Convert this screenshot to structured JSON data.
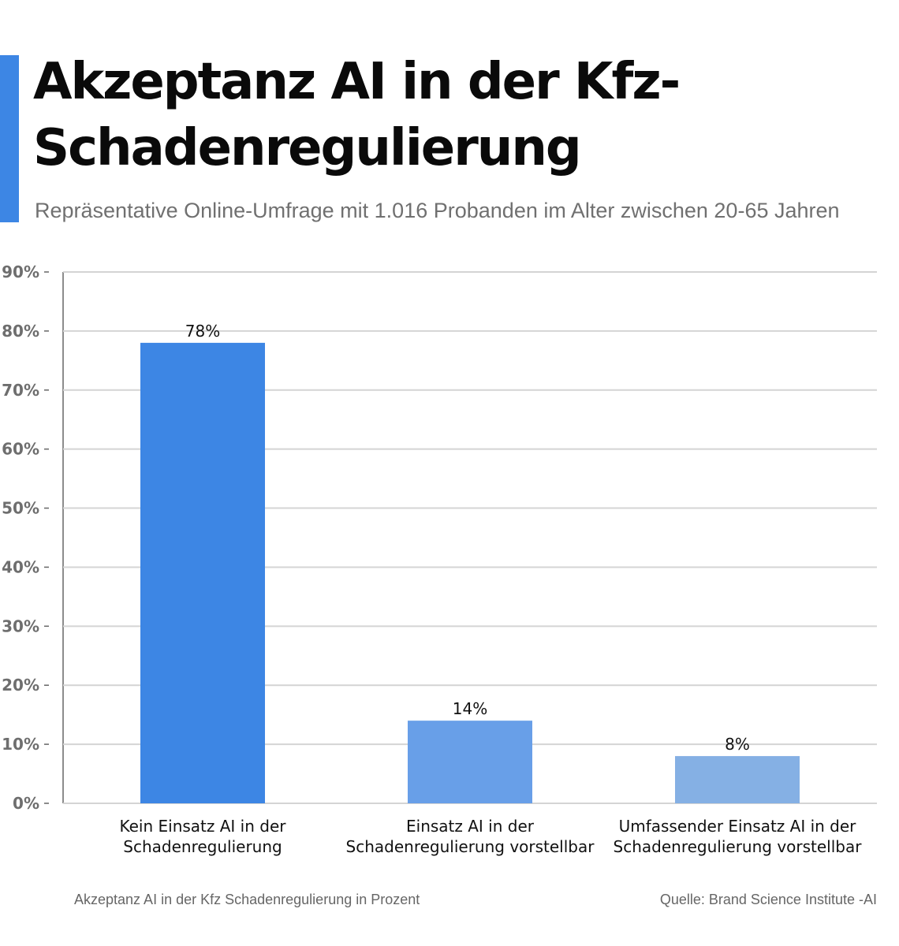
{
  "header": {
    "title": "Akzeptanz AI in der Kfz-Schadenregulierung",
    "subtitle": "Repräsentative Online-Umfrage mit 1.016 Probanden im Alter zwischen 20-65 Jahren"
  },
  "footer": {
    "caption": "Akzeptanz AI in der Kfz Schadenregulierung in Prozent",
    "source": "Quelle: Brand Science Institute -AI"
  },
  "colors": {
    "accent": "#3d86e4"
  },
  "chart_data": {
    "type": "bar",
    "categories": [
      [
        "Kein Einsatz AI in der",
        "Schadenregulierung"
      ],
      [
        "Einsatz AI in der",
        "Schadenregulierung vorstellbar"
      ],
      [
        "Umfassender Einsatz AI in der",
        "Schadenregulierung vorstellbar"
      ]
    ],
    "values": [
      78,
      14,
      8
    ],
    "value_labels": [
      "78%",
      "14%",
      "8%"
    ],
    "bar_colors": [
      "#3d86e4",
      "#689fe8",
      "#85b0e4"
    ],
    "yticks": [
      "0%",
      "10%",
      "20%",
      "30%",
      "40%",
      "50%",
      "60%",
      "70%",
      "80%",
      "90%"
    ],
    "ylim": [
      0,
      90
    ],
    "grid": true,
    "legend": "none"
  }
}
